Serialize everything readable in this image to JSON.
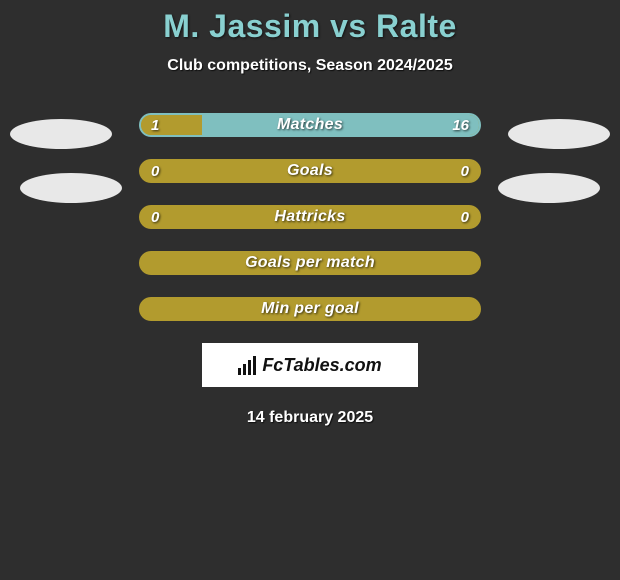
{
  "header": {
    "title": "M. Jassim vs Ralte",
    "title_color": "#89d0d0",
    "title_fontsize": 32,
    "subtitle": "Club competitions, Season 2024/2025",
    "subtitle_color": "#ffffff",
    "subtitle_fontsize": 16
  },
  "background_color": "#2e2e2e",
  "bar_style": {
    "height": 24,
    "border_radius": 12,
    "border_width": 2,
    "gap": 22,
    "font_color": "#ffffff",
    "font_style": "italic",
    "font_weight": 800,
    "label_fontsize": 16,
    "value_fontsize": 15
  },
  "colors": {
    "left": "#b29b2e",
    "right": "#7fbfbf",
    "empty": "#b29b2e"
  },
  "stats": [
    {
      "label": "Matches",
      "left_value": "1",
      "right_value": "16",
      "left_num": 1,
      "right_num": 16,
      "left_pct": 18,
      "right_pct": 82,
      "border_color": "#7fbfbf",
      "left_fill": "#b29b2e",
      "right_fill": "#7fbfbf"
    },
    {
      "label": "Goals",
      "left_value": "0",
      "right_value": "0",
      "left_num": 0,
      "right_num": 0,
      "left_pct": 0,
      "right_pct": 0,
      "border_color": "#b29b2e",
      "left_fill": "#b29b2e",
      "right_fill": "#b29b2e"
    },
    {
      "label": "Hattricks",
      "left_value": "0",
      "right_value": "0",
      "left_num": 0,
      "right_num": 0,
      "left_pct": 0,
      "right_pct": 0,
      "border_color": "#b29b2e",
      "left_fill": "#b29b2e",
      "right_fill": "#b29b2e"
    },
    {
      "label": "Goals per match",
      "left_value": "",
      "right_value": "",
      "left_num": 0,
      "right_num": 0,
      "left_pct": 0,
      "right_pct": 0,
      "border_color": "#b29b2e",
      "left_fill": "#b29b2e",
      "right_fill": "#b29b2e"
    },
    {
      "label": "Min per goal",
      "left_value": "",
      "right_value": "",
      "left_num": 0,
      "right_num": 0,
      "left_pct": 0,
      "right_pct": 0,
      "border_color": "#b29b2e",
      "left_fill": "#b29b2e",
      "right_fill": "#b29b2e"
    }
  ],
  "placeholders": {
    "oval_color": "#e8e8e8",
    "oval_width": 102,
    "oval_height": 30
  },
  "brand": {
    "text": "FcTables.com",
    "box_bg": "#ffffff",
    "text_color": "#111111",
    "icon_name": "bar-chart-icon"
  },
  "date": "14 february 2025"
}
